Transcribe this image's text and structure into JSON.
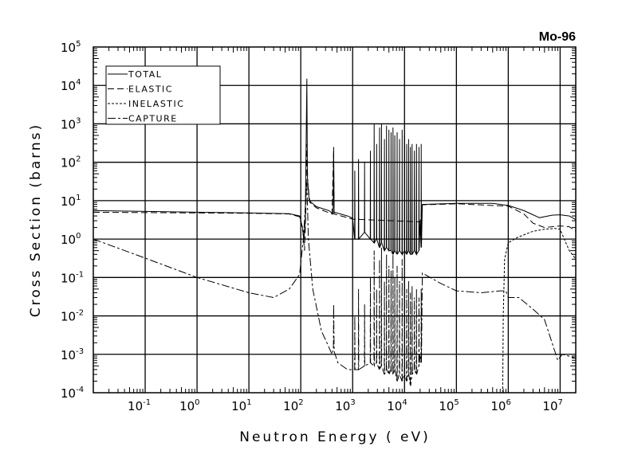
{
  "chart_data": {
    "type": "line",
    "title": "Mo-96",
    "xlabel": "Neutron Energy ( eV)",
    "ylabel": "Cross Section (barns)",
    "xscale": "log",
    "yscale": "log",
    "xlim": [
      0.01,
      20000000
    ],
    "ylim": [
      0.0001,
      100000
    ],
    "grid": true,
    "legend_position": "top-left",
    "x_ticks": [
      {
        "base": "10",
        "exp": "-1",
        "value": 0.1
      },
      {
        "base": "10",
        "exp": "0",
        "value": 1
      },
      {
        "base": "10",
        "exp": "1",
        "value": 10
      },
      {
        "base": "10",
        "exp": "2",
        "value": 100
      },
      {
        "base": "10",
        "exp": "3",
        "value": 1000
      },
      {
        "base": "10",
        "exp": "4",
        "value": 10000
      },
      {
        "base": "10",
        "exp": "5",
        "value": 100000
      },
      {
        "base": "10",
        "exp": "6",
        "value": 1000000
      },
      {
        "base": "10",
        "exp": "7",
        "value": 10000000
      }
    ],
    "y_ticks": [
      {
        "base": "10",
        "exp": "5",
        "value": 100000
      },
      {
        "base": "10",
        "exp": "4",
        "value": 10000
      },
      {
        "base": "10",
        "exp": "3",
        "value": 1000
      },
      {
        "base": "10",
        "exp": "2",
        "value": 100
      },
      {
        "base": "10",
        "exp": "1",
        "value": 10
      },
      {
        "base": "10",
        "exp": "0",
        "value": 1
      },
      {
        "base": "10",
        "exp": "-1",
        "value": 0.1
      },
      {
        "base": "10",
        "exp": "-2",
        "value": 0.01
      },
      {
        "base": "10",
        "exp": "-3",
        "value": 0.001
      },
      {
        "base": "10",
        "exp": "-4",
        "value": 0.0001
      }
    ],
    "series": [
      {
        "name": "TOTAL",
        "dash": "solid",
        "points": [
          [
            0.01,
            5.5
          ],
          [
            1,
            5.0
          ],
          [
            10,
            4.8
          ],
          [
            60,
            4.6
          ],
          [
            95,
            4.0
          ],
          [
            108,
            2.0
          ],
          [
            115,
            1.0
          ],
          [
            122,
            3
          ],
          [
            131,
            15000
          ],
          [
            134,
            40
          ],
          [
            145,
            10
          ],
          [
            200,
            7
          ],
          [
            350,
            5.5
          ],
          [
            420,
            4.5
          ],
          [
            430,
            250
          ],
          [
            440,
            5
          ],
          [
            800,
            4
          ],
          [
            1000,
            3.5
          ],
          [
            20000,
            3
          ],
          [
            22000,
            8
          ],
          [
            100000,
            8.5
          ],
          [
            500000,
            8.5
          ],
          [
            1000000,
            7.5
          ],
          [
            2000000,
            5.5
          ],
          [
            4000000,
            3.6
          ],
          [
            7000000,
            4.2
          ],
          [
            10000000,
            4.3
          ],
          [
            15000000,
            4.0
          ],
          [
            20000000,
            3.2
          ]
        ],
        "resonances": [
          [
            1100,
            60,
            1
          ],
          [
            1300,
            120,
            1
          ],
          [
            1700,
            100,
            1.5
          ],
          [
            2200,
            200,
            1
          ],
          [
            2600,
            1000,
            0.8
          ],
          [
            2900,
            300,
            1
          ],
          [
            3300,
            800,
            0.6
          ],
          [
            3600,
            1000,
            0.8
          ],
          [
            4100,
            400,
            0.5
          ],
          [
            4500,
            900,
            0.6
          ],
          [
            5000,
            700,
            0.5
          ],
          [
            5500,
            600,
            0.5
          ],
          [
            6000,
            800,
            0.4
          ],
          [
            6500,
            500,
            0.5
          ],
          [
            7200,
            600,
            0.4
          ],
          [
            8000,
            400,
            0.5
          ],
          [
            9000,
            700,
            0.4
          ],
          [
            10000,
            500,
            0.5
          ],
          [
            11000,
            300,
            0.4
          ],
          [
            12000,
            400,
            0.5
          ],
          [
            13000,
            250,
            0.4
          ],
          [
            14000,
            300,
            0.4
          ],
          [
            15500,
            200,
            0.5
          ],
          [
            17000,
            300,
            0.4
          ],
          [
            19000,
            250,
            0.5
          ],
          [
            21000,
            300,
            0.6
          ]
        ]
      },
      {
        "name": "ELASTIC",
        "dash": "long-dash",
        "points": [
          [
            0.01,
            5.0
          ],
          [
            1,
            4.8
          ],
          [
            10,
            4.7
          ],
          [
            60,
            4.5
          ],
          [
            95,
            3.8
          ],
          [
            110,
            1.5
          ],
          [
            118,
            0.5
          ],
          [
            125,
            5
          ],
          [
            131,
            300
          ],
          [
            136,
            30
          ],
          [
            150,
            9
          ],
          [
            200,
            6.5
          ],
          [
            400,
            4.5
          ],
          [
            430,
            200
          ],
          [
            440,
            4.5
          ],
          [
            1000,
            3.3
          ],
          [
            20000,
            2.8
          ],
          [
            22000,
            7.8
          ],
          [
            100000,
            8.3
          ],
          [
            1000000,
            7.2
          ],
          [
            2000000,
            4.5
          ],
          [
            3000000,
            2.6
          ],
          [
            5000000,
            2.0
          ],
          [
            10000000,
            2.2
          ],
          [
            15000000,
            2.1
          ],
          [
            20000000,
            1.6
          ]
        ],
        "resonances": []
      },
      {
        "name": "INELASTIC",
        "dash": "short-dash",
        "points": [
          [
            780000,
            0.0001
          ],
          [
            800000,
            0.01
          ],
          [
            850000,
            0.3
          ],
          [
            1000000,
            0.8
          ],
          [
            1500000,
            1.1
          ],
          [
            3000000,
            1.6
          ],
          [
            5000000,
            1.8
          ],
          [
            8000000,
            1.9
          ],
          [
            10000000,
            1.8
          ],
          [
            12000000,
            1.0
          ],
          [
            15000000,
            0.5
          ],
          [
            20000000,
            0.3
          ]
        ],
        "resonances": []
      },
      {
        "name": "CAPTURE",
        "dash": "dash-dot",
        "points": [
          [
            0.01,
            1.0
          ],
          [
            0.1,
            0.32
          ],
          [
            1,
            0.1
          ],
          [
            10,
            0.04
          ],
          [
            30,
            0.03
          ],
          [
            60,
            0.05
          ],
          [
            95,
            0.12
          ],
          [
            112,
            1
          ],
          [
            131,
            30
          ],
          [
            140,
            1
          ],
          [
            170,
            0.05
          ],
          [
            250,
            0.004
          ],
          [
            320,
            0.002
          ],
          [
            400,
            0.001
          ],
          [
            425,
            0.0015
          ],
          [
            430,
            0.02
          ],
          [
            440,
            0.0012
          ],
          [
            520,
            0.0006
          ],
          [
            800,
            0.0004
          ],
          [
            1000,
            0.0004
          ],
          [
            20000,
            0.001
          ],
          [
            22000,
            0.13
          ],
          [
            50000,
            0.07
          ],
          [
            100000,
            0.045
          ],
          [
            300000,
            0.04
          ],
          [
            700000,
            0.045
          ],
          [
            900000,
            0.045
          ],
          [
            1000000,
            0.03
          ],
          [
            1300000,
            0.03
          ],
          [
            1600000,
            0.03
          ],
          [
            3000000,
            0.015
          ],
          [
            5000000,
            0.008
          ],
          [
            7000000,
            0.002
          ],
          [
            9000000,
            0.0007
          ],
          [
            11000000,
            0.001
          ],
          [
            20000000,
            0.0008
          ]
        ],
        "resonances": [
          [
            1100,
            0.01,
            0.0004
          ],
          [
            1300,
            0.05,
            0.0004
          ],
          [
            1700,
            0.02,
            0.0005
          ],
          [
            2200,
            0.1,
            0.0006
          ],
          [
            2600,
            0.5,
            0.0005
          ],
          [
            2900,
            0.05,
            0.0006
          ],
          [
            3300,
            0.3,
            0.0004
          ],
          [
            3600,
            0.6,
            0.0005
          ],
          [
            4100,
            0.08,
            0.0003
          ],
          [
            4500,
            0.4,
            0.0004
          ],
          [
            5000,
            0.2,
            0.0003
          ],
          [
            5500,
            0.15,
            0.0004
          ],
          [
            6000,
            0.4,
            0.0003
          ],
          [
            6500,
            0.1,
            0.0004
          ],
          [
            7200,
            0.2,
            0.0002
          ],
          [
            8000,
            0.08,
            0.0003
          ],
          [
            9000,
            0.3,
            0.0002
          ],
          [
            10000,
            0.1,
            0.0003
          ],
          [
            11000,
            0.05,
            0.0002
          ],
          [
            12000,
            0.08,
            0.0003
          ],
          [
            13000,
            0.04,
            0.00015
          ],
          [
            14000,
            0.06,
            0.0003
          ],
          [
            15500,
            0.03,
            0.0004
          ],
          [
            17000,
            0.05,
            0.0003
          ],
          [
            19000,
            0.03,
            0.0005
          ],
          [
            21000,
            0.05,
            0.0006
          ]
        ]
      }
    ],
    "legend": [
      "TOTAL",
      "ELASTIC",
      "INELASTIC",
      "CAPTURE"
    ]
  }
}
